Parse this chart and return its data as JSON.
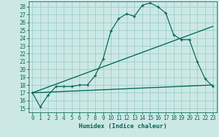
{
  "xlabel": "Humidex (Indice chaleur)",
  "bg_color": "#cce8e4",
  "line_color": "#006655",
  "grid_color": "#99cccc",
  "xlim": [
    -0.5,
    23.5
  ],
  "ylim": [
    14.5,
    28.7
  ],
  "yticks": [
    15,
    16,
    17,
    18,
    19,
    20,
    21,
    22,
    23,
    24,
    25,
    26,
    27,
    28
  ],
  "xticks": [
    0,
    1,
    2,
    3,
    4,
    5,
    6,
    7,
    8,
    9,
    10,
    11,
    12,
    13,
    14,
    15,
    16,
    17,
    18,
    19,
    20,
    21,
    22,
    23
  ],
  "line1_x": [
    0,
    1,
    2,
    3,
    4,
    5,
    6,
    7,
    8,
    9,
    10,
    11,
    12,
    13,
    14,
    15,
    16,
    17,
    18,
    19,
    20,
    21,
    22,
    23
  ],
  "line1_y": [
    17.0,
    15.2,
    16.7,
    17.8,
    17.8,
    17.8,
    18.0,
    18.0,
    19.2,
    21.3,
    24.9,
    26.5,
    27.1,
    26.8,
    28.2,
    28.5,
    28.0,
    27.2,
    24.4,
    23.8,
    23.8,
    21.0,
    18.8,
    17.8
  ],
  "line2_x": [
    0,
    23
  ],
  "line2_y": [
    17.0,
    18.0
  ],
  "line3_x": [
    0,
    23
  ],
  "line3_y": [
    17.0,
    25.5
  ],
  "font_size_ticks": 5.5,
  "font_size_xlabel": 6.5
}
